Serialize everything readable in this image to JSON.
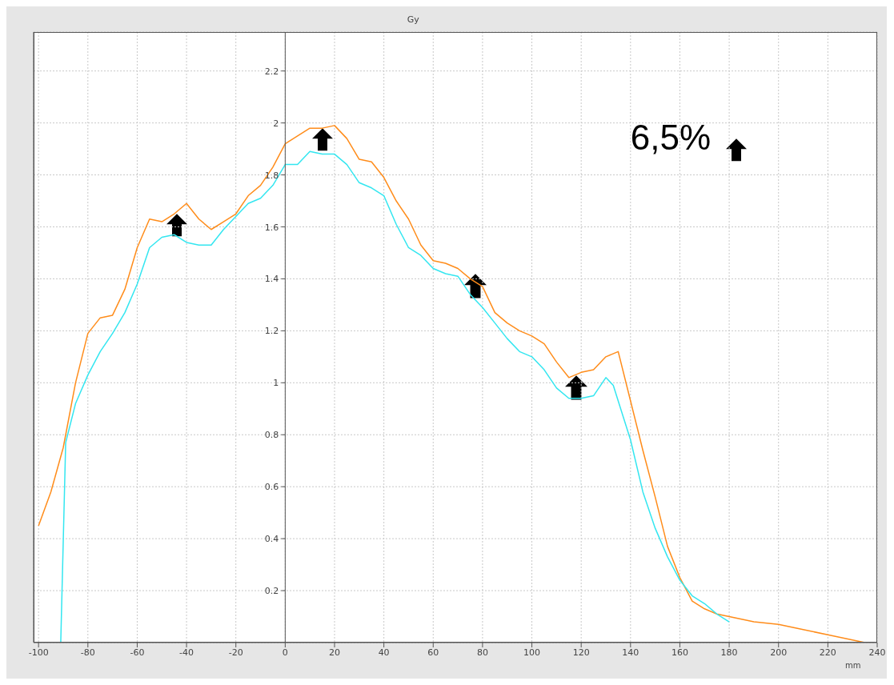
{
  "chart_data": {
    "type": "line",
    "ylabel": "Gy",
    "xlabel": "mm",
    "annotations": [
      "6,5%"
    ],
    "xlim": [
      -102,
      240
    ],
    "xticks": [
      -100,
      -80,
      -60,
      -40,
      -20,
      0,
      20,
      40,
      60,
      80,
      100,
      120,
      140,
      160,
      180,
      200,
      220,
      240
    ],
    "ylim": [
      0,
      2.35
    ],
    "yticks": [
      0.2,
      0.4,
      0.6,
      0.8,
      1,
      1.2,
      1.4,
      1.6,
      1.8,
      2,
      2.2
    ],
    "grid": true,
    "legend": false,
    "marker": "none",
    "line_style": "solid",
    "series": [
      {
        "color": "#ff8c1a",
        "x": [
          -100,
          -95,
          -90,
          -85,
          -80,
          -75,
          -70,
          -65,
          -60,
          -55,
          -50,
          -45,
          -40,
          -35,
          -30,
          -25,
          -20,
          -15,
          -10,
          -5,
          0,
          5,
          10,
          15,
          20,
          25,
          30,
          35,
          40,
          45,
          50,
          55,
          60,
          65,
          70,
          75,
          80,
          85,
          90,
          95,
          100,
          105,
          110,
          115,
          120,
          125,
          130,
          135,
          140,
          145,
          150,
          155,
          160,
          165,
          170,
          175,
          180,
          190,
          200,
          205,
          210,
          220,
          230,
          235,
          240
        ],
        "values": [
          0.45,
          0.58,
          0.75,
          1.0,
          1.19,
          1.25,
          1.26,
          1.36,
          1.52,
          1.63,
          1.62,
          1.65,
          1.69,
          1.63,
          1.59,
          1.62,
          1.65,
          1.72,
          1.76,
          1.83,
          1.92,
          1.95,
          1.98,
          1.98,
          1.99,
          1.94,
          1.86,
          1.85,
          1.79,
          1.7,
          1.63,
          1.53,
          1.47,
          1.46,
          1.44,
          1.4,
          1.37,
          1.27,
          1.23,
          1.2,
          1.18,
          1.15,
          1.08,
          1.02,
          1.04,
          1.05,
          1.1,
          1.12,
          0.93,
          0.74,
          0.56,
          0.37,
          0.25,
          0.16,
          0.13,
          0.11,
          0.1,
          0.08,
          0.07,
          0.06,
          0.05,
          0.03,
          0.01,
          0,
          0
        ]
      },
      {
        "color": "#33e6f0",
        "x": [
          -100,
          -91,
          -89,
          -85,
          -80,
          -75,
          -70,
          -65,
          -60,
          -55,
          -50,
          -45,
          -40,
          -35,
          -30,
          -25,
          -20,
          -15,
          -10,
          -5,
          0,
          5,
          10,
          15,
          20,
          25,
          30,
          35,
          40,
          45,
          50,
          55,
          60,
          65,
          70,
          75,
          80,
          85,
          90,
          95,
          100,
          105,
          110,
          115,
          120,
          125,
          130,
          133,
          140,
          145,
          150,
          155,
          160,
          165,
          170,
          175,
          180
        ],
        "values": [
          0,
          0,
          0.77,
          0.92,
          1.03,
          1.12,
          1.19,
          1.27,
          1.38,
          1.52,
          1.56,
          1.57,
          1.54,
          1.53,
          1.53,
          1.59,
          1.64,
          1.69,
          1.71,
          1.76,
          1.84,
          1.84,
          1.89,
          1.88,
          1.88,
          1.84,
          1.77,
          1.75,
          1.72,
          1.61,
          1.52,
          1.49,
          1.44,
          1.42,
          1.41,
          1.34,
          1.29,
          1.23,
          1.17,
          1.12,
          1.1,
          1.05,
          0.98,
          0.94,
          0.94,
          0.95,
          1.02,
          0.99,
          0.78,
          0.58,
          0.44,
          0.33,
          0.24,
          0.18,
          0.15,
          0.11,
          0.08
        ]
      }
    ]
  }
}
